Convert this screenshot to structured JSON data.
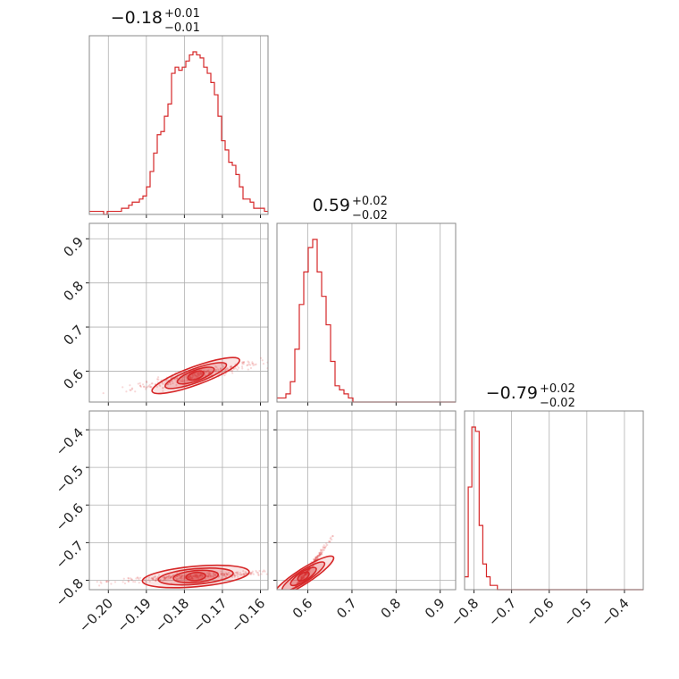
{
  "chart_data": {
    "type": "corner",
    "color": "#d62728",
    "parameters": [
      {
        "median": "−0.18",
        "plus": "+0.01",
        "minus": "−0.01",
        "range": [
          -0.205,
          -0.158
        ],
        "ticks": [
          -0.2,
          -0.19,
          -0.18,
          -0.17,
          -0.16
        ],
        "tick_labels": [
          "−0.20",
          "−0.19",
          "−0.18",
          "−0.17",
          "−0.16"
        ],
        "hist_bins": [
          -0.205,
          -0.158
        ],
        "hist_values": [
          1,
          1,
          1,
          1,
          0,
          1,
          1,
          1,
          1,
          2,
          2,
          3,
          4,
          4,
          5,
          6,
          9,
          14,
          20,
          26,
          27,
          32,
          36,
          46,
          48,
          47,
          48,
          50,
          52,
          53,
          52,
          51,
          48,
          46,
          43,
          39,
          32,
          24,
          21,
          17,
          16,
          13,
          9,
          5,
          5,
          4,
          2,
          2,
          2,
          1
        ]
      },
      {
        "median": "0.59",
        "plus": "+0.02",
        "minus": "−0.02",
        "range": [
          0.53,
          0.935
        ],
        "ticks": [
          0.6,
          0.7,
          0.8,
          0.9
        ],
        "tick_labels": [
          "0.6",
          "0.7",
          "0.8",
          "0.9"
        ],
        "hist_bins": [
          0.53,
          0.935
        ],
        "hist_values": [
          1,
          1,
          2,
          5,
          13,
          24,
          32,
          38,
          40,
          32,
          26,
          19,
          10,
          4,
          3,
          2,
          1,
          0,
          0,
          0,
          0,
          0,
          0,
          0,
          0,
          0,
          0,
          0,
          0,
          0,
          0,
          0,
          0,
          0,
          0,
          0,
          0,
          0,
          0,
          0
        ]
      },
      {
        "median": "−0.79",
        "plus": "+0.02",
        "minus": "−0.02",
        "range": [
          -0.825,
          -0.35
        ],
        "ticks": [
          -0.8,
          -0.7,
          -0.6,
          -0.5,
          -0.4
        ],
        "tick_labels": [
          "−0.8",
          "−0.7",
          "−0.6",
          "−0.5",
          "−0.4"
        ],
        "hist_bins": [
          -0.825,
          -0.35
        ],
        "hist_values": [
          3,
          24,
          38,
          37,
          15,
          6,
          3,
          1,
          1,
          0,
          0,
          0,
          0,
          0,
          0,
          0,
          0,
          0,
          0,
          0,
          0,
          0,
          0,
          0,
          0,
          0,
          0,
          0,
          0,
          0,
          0,
          0,
          0,
          0,
          0,
          0,
          0,
          0,
          0,
          0,
          0,
          0,
          0,
          0,
          0,
          0,
          0,
          0,
          0
        ]
      }
    ],
    "correlations": [
      {
        "pair": [
          1,
          0
        ],
        "center": [
          -0.177,
          0.59
        ],
        "slope": 8.5,
        "spread": [
          0.006,
          0.006
        ]
      },
      {
        "pair": [
          2,
          0
        ],
        "center": [
          -0.177,
          -0.79
        ],
        "slope": 1.3,
        "spread": [
          0.008,
          0.004
        ]
      },
      {
        "pair": [
          2,
          1
        ],
        "center": [
          0.59,
          -0.79
        ],
        "slope": 0.95,
        "spread": [
          0.02,
          0.004
        ]
      }
    ],
    "grid": true
  }
}
